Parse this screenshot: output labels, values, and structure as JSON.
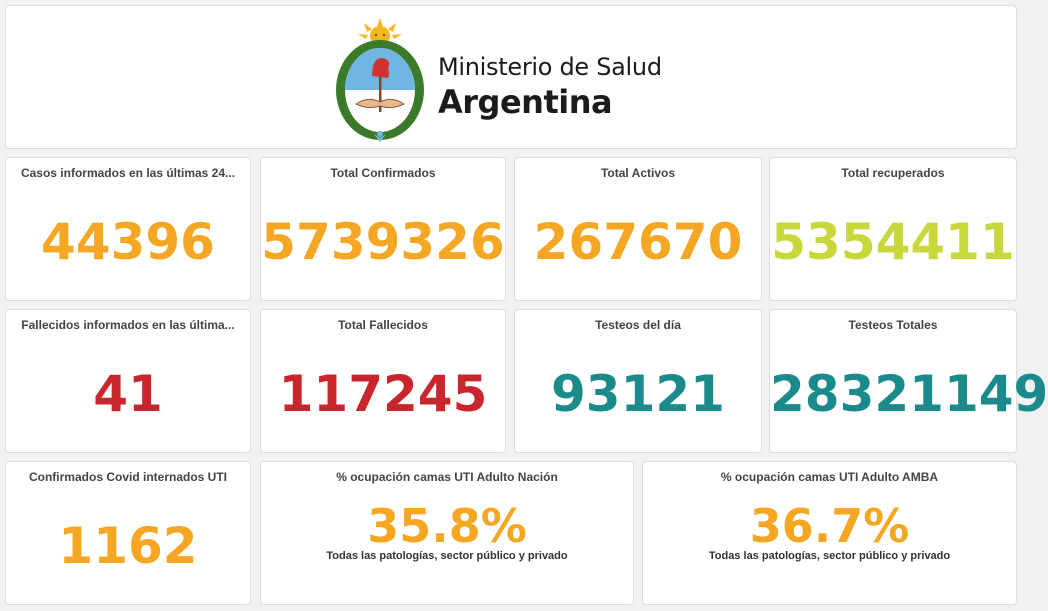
{
  "header": {
    "brand_line1": "Ministerio de Salud",
    "brand_line2": "Argentina",
    "logo_icon": "argentina-coat-of-arms-icon"
  },
  "colors": {
    "orange": "#f5a623",
    "lime": "#c8d83a",
    "red": "#c8262c",
    "teal": "#1a8a8a"
  },
  "stats": {
    "casos24": {
      "title": "Casos informados en las últimas 24...",
      "value": "44396"
    },
    "confirmados": {
      "title": "Total Confirmados",
      "value": "5739326"
    },
    "activos": {
      "title": "Total Activos",
      "value": "267670"
    },
    "recuperados": {
      "title": "Total recuperados",
      "value": "5354411"
    },
    "fallecidos24": {
      "title": "Fallecidos informados en las última...",
      "value": "41"
    },
    "fallecidos": {
      "title": "Total Fallecidos",
      "value": "117245"
    },
    "testeosdia": {
      "title": "Testeos del día",
      "value": "93121"
    },
    "testeostotal": {
      "title": "Testeos Totales",
      "value": "28321149"
    },
    "uti": {
      "title": "Confirmados Covid internados UTI",
      "value": "1162"
    },
    "ocupNacion": {
      "title": "% ocupación camas UTI Adulto Nación",
      "value": "35.8%",
      "sub": "Todas las patologías, sector público y privado"
    },
    "ocupAmba": {
      "title": "% ocupación camas UTI Adulto AMBA",
      "value": "36.7%",
      "sub": "Todas las patologías, sector público y privado"
    }
  }
}
